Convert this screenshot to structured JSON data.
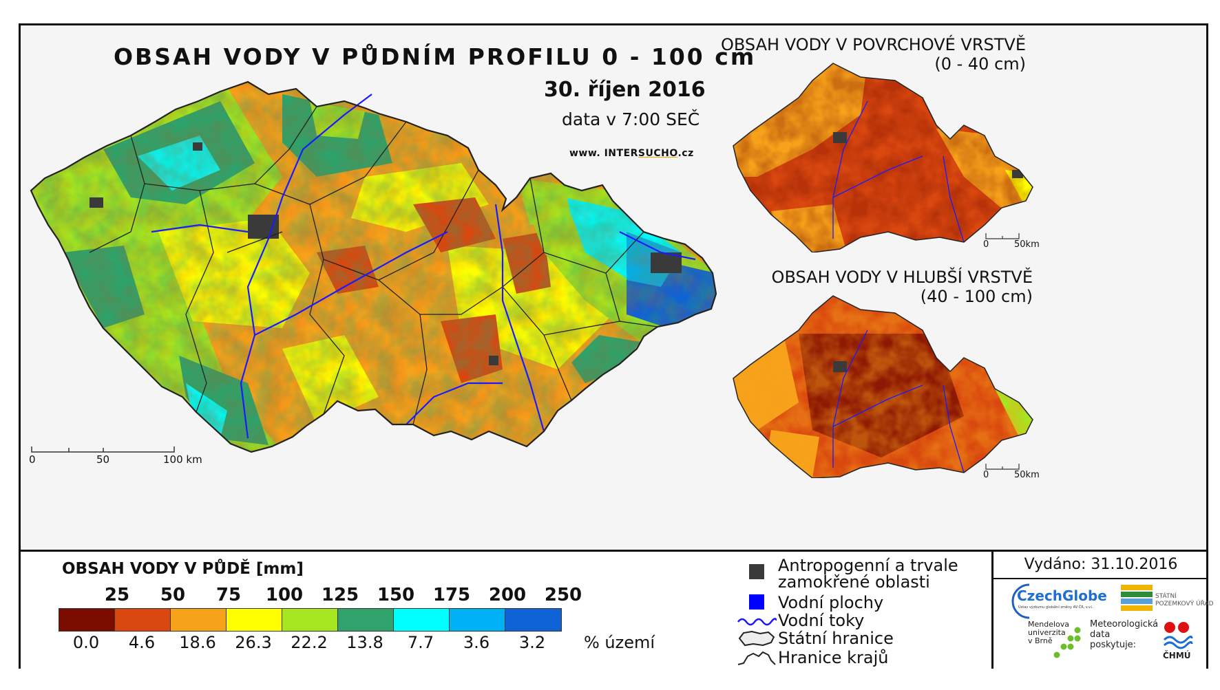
{
  "main_map": {
    "title": "OBSAH VODY V PŮDNÍM PROFILU 0 - 100 cm",
    "date": "30. říjen 2016",
    "subtitle": "data v 7:00 SEČ",
    "website_prefix": "www. INTER",
    "website_highlight": "SUCHO",
    "website_suffix": ".cz",
    "scale": {
      "labels": [
        "0",
        "50",
        "100 km"
      ]
    }
  },
  "surface_map": {
    "title_line1": "OBSAH VODY V POVRCHOVÉ VRSTVĚ",
    "title_line2": "(0 - 40 cm)",
    "scale": {
      "labels": [
        "0",
        "50km"
      ]
    }
  },
  "deep_map": {
    "title_line1": "OBSAH VODY V HLUBŠÍ VRSTVĚ",
    "title_line2": "(40 - 100 cm)",
    "scale": {
      "labels": [
        "0",
        "50km"
      ]
    }
  },
  "legend": {
    "title": "OBSAH VODY V PŮDĚ [mm]",
    "class_breaks": [
      "25",
      "50",
      "75",
      "100",
      "125",
      "150",
      "175",
      "200",
      "250"
    ],
    "class_colors": [
      "#7a0c00",
      "#d9480f",
      "#f7a21b",
      "#ffff00",
      "#a6e620",
      "#2fa36b",
      "#00ffff",
      "#00b2f5",
      "#1063d6"
    ],
    "area_percent": [
      "0.0",
      "4.6",
      "18.6",
      "26.3",
      "22.2",
      "13.8",
      "7.7",
      "3.6",
      "3.2"
    ],
    "area_unit": "% území"
  },
  "symbols": {
    "anthropogenic": "Antropogenní a trvale zamokřené oblasti",
    "anthropogenic_line1": "Antropogenní a trvale",
    "anthropogenic_line2": "zamokřené oblasti",
    "water_bodies": "Vodní plochy",
    "rivers": "Vodní toky",
    "state_border": "Státní hranice",
    "region_border": "Hranice krajů"
  },
  "info": {
    "issued": "Vydáno: 31.10.2016",
    "czechglobe": "CzechGlobe",
    "czechglobe_sub": "Ústav výzkumu globální změny AV ČR, v.v.i.",
    "spu_line1": "STÁTNÍ",
    "spu_line2": "POZEMKOVÝ ÚŘAD",
    "mendel_line1": "Mendelova",
    "mendel_line2": "univerzita",
    "mendel_line3": "v Brně",
    "meteo_line1": "Meteorologická",
    "meteo_line2": "data",
    "meteo_line3": "poskytuje:",
    "chmu": "ČHMÚ"
  },
  "colors": {
    "anthropogenic": "#3a3a3a",
    "water": "#0000ff",
    "river": "#1a1aff"
  }
}
